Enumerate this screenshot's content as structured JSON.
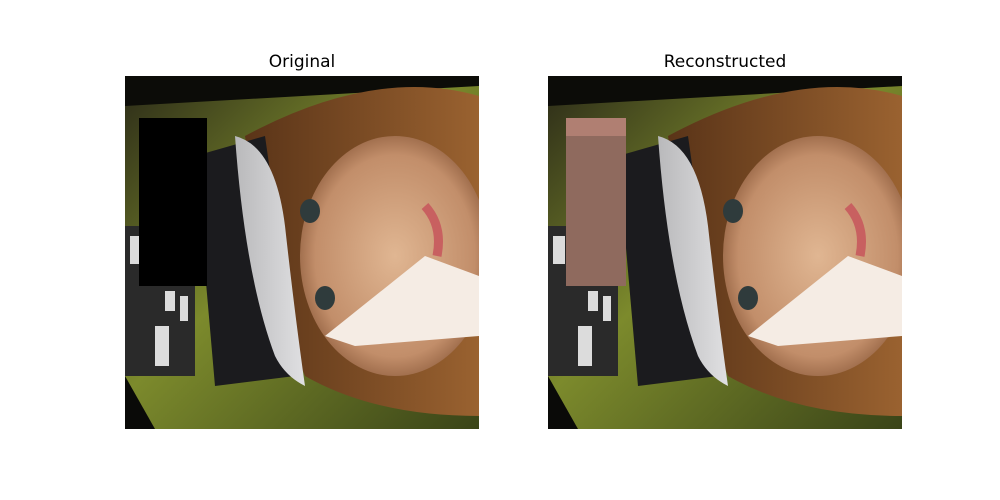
{
  "figure": {
    "left_title": "Original",
    "right_title": "Reconstructed"
  },
  "images": {
    "original": {
      "description_icon": "rotated-face-with-cap-icon",
      "mask_color": "#000000"
    },
    "reconstructed": {
      "description_icon": "rotated-face-with-cap-icon",
      "fill_color": "#8f6a5e"
    }
  }
}
